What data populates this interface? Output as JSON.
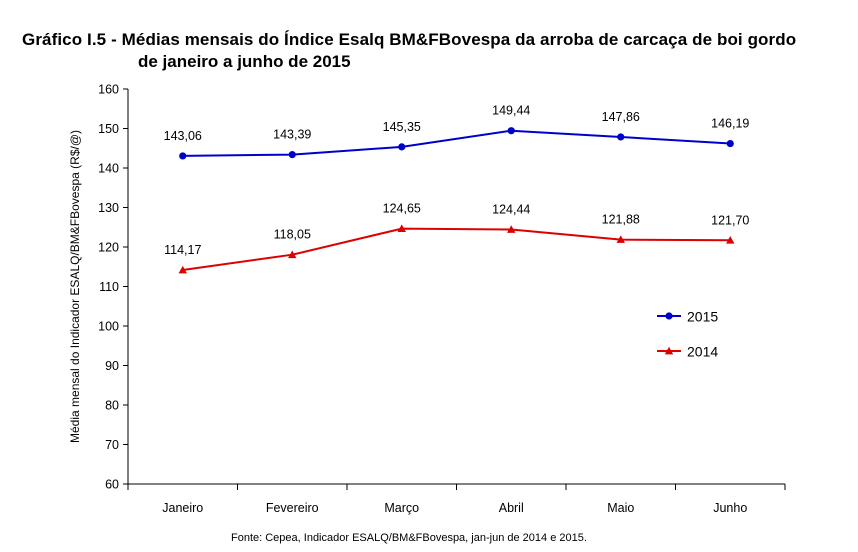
{
  "title": {
    "line1": "Gráfico I.5 - Médias mensais do Índice Esalq BM&FBovespa da arroba de carcaça de boi gordo",
    "line2": "de janeiro a junho de 2015"
  },
  "source": "Fonte: Cepea, Indicador ESALQ/BM&FBovespa, jan-jun de 2014 e 2015.",
  "chart_data": {
    "type": "line",
    "title": "Gráfico I.5 - Médias mensais do Índice Esalq BM&FBovespa da arroba de carcaça de boi gordo de janeiro a junho de 2015",
    "xlabel": "",
    "ylabel": "Média mensal do Indicador ESALQ/BM&FBovespa (R$/@)",
    "categories": [
      "Janeiro",
      "Fevereiro",
      "Março",
      "Abril",
      "Maio",
      "Junho"
    ],
    "ylim": [
      60,
      160
    ],
    "yticks": [
      60,
      70,
      80,
      90,
      100,
      110,
      120,
      130,
      140,
      150,
      160
    ],
    "grid": false,
    "legend_position": "right",
    "series": [
      {
        "name": "2015",
        "color": "#0000cc",
        "marker": "circle",
        "values": [
          143.06,
          143.39,
          145.35,
          149.44,
          147.86,
          146.19
        ],
        "labels": [
          "143,06",
          "143,39",
          "145,35",
          "149,44",
          "147,86",
          "146,19"
        ]
      },
      {
        "name": "2014",
        "color": "#dd0000",
        "marker": "triangle",
        "values": [
          114.17,
          118.05,
          124.65,
          124.44,
          121.88,
          121.7
        ],
        "labels": [
          "114,17",
          "118,05",
          "124,65",
          "124,44",
          "121,88",
          "121,70"
        ]
      }
    ]
  }
}
